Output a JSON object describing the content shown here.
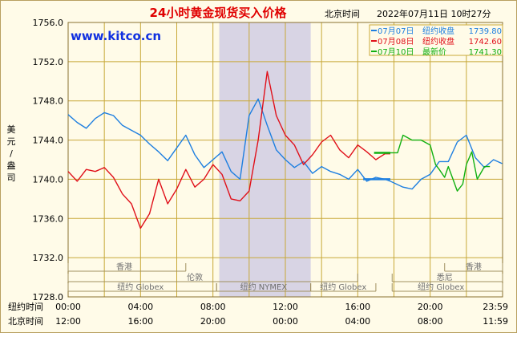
{
  "header": {
    "title": "24小时黄金现货买入价格",
    "timezone_label": "北京时间",
    "timestamp": "2022年07月11日 10时27分",
    "watermark": "www.kitco.cn"
  },
  "legend": [
    {
      "date_label": "07月07日",
      "desc": "纽约收盘",
      "value": "1739.80",
      "color": "#1e7fe0"
    },
    {
      "date_label": "07月08日",
      "desc": "纽约收盘",
      "value": "1742.60",
      "color": "#e0101a"
    },
    {
      "date_label": "07月10日",
      "desc": "最新价",
      "value": "1741.30",
      "color": "#10b010"
    }
  ],
  "axes": {
    "ylabel": "美元/盎司",
    "y_ticks": [
      "1756.0",
      "1752.0",
      "1748.0",
      "1744.0",
      "1740.0",
      "1736.0",
      "1732.0",
      "1728.0"
    ],
    "row1_label": "纽约时间",
    "row1_ticks": [
      "00:00",
      "04:00",
      "08:00",
      "12:00",
      "16:00",
      "20:00",
      "23:59"
    ],
    "row2_label": "北京时间",
    "row2_ticks": [
      "12:00",
      "16:00",
      "20:00",
      "00:00",
      "04:00",
      "08:00",
      "11:59"
    ]
  },
  "sessions": [
    "香港",
    "伦敦",
    "纽约 Globex",
    "纽约 NYMEX",
    "纽约 Globex",
    "香港",
    "悉尼",
    "纽约 Globex"
  ],
  "colors": {
    "grid": "#c8a838",
    "panel": "#fffbe8",
    "shade": "#d8d4e4",
    "accent_title": "#e00000",
    "watermark": "#1030e0"
  },
  "chart_data": {
    "type": "line",
    "title": "24小时黄金现货买入价格",
    "xlabel": "纽约时间",
    "ylabel": "美元/盎司",
    "ylim": [
      1728.0,
      1756.0
    ],
    "xlim_hours": [
      0,
      24
    ],
    "grid": true,
    "highlight_hours": [
      8.35,
      13.4
    ],
    "series": [
      {
        "name": "07月07日 纽约收盘",
        "color": "#1e7fe0",
        "x": [
          0,
          0.5,
          1,
          1.5,
          2,
          2.5,
          3,
          3.5,
          4,
          4.5,
          5,
          5.5,
          6,
          6.5,
          7,
          7.5,
          8,
          8.5,
          9,
          9.5,
          10,
          10.5,
          11,
          11.5,
          12,
          12.5,
          13,
          13.5,
          14,
          14.5,
          15,
          15.5,
          16,
          16.5,
          17,
          17.5,
          17.8,
          18.5,
          19,
          19.5,
          20,
          20.5,
          21,
          21.5,
          22,
          22.5,
          23,
          23.5,
          23.98
        ],
        "y": [
          1746.6,
          1745.8,
          1745.2,
          1746.2,
          1746.8,
          1746.5,
          1745.5,
          1745.0,
          1744.5,
          1743.6,
          1742.8,
          1741.9,
          1743.2,
          1744.5,
          1742.5,
          1741.2,
          1742.0,
          1742.8,
          1740.8,
          1740.0,
          1746.5,
          1748.2,
          1745.5,
          1743.0,
          1742.0,
          1741.2,
          1741.8,
          1740.6,
          1741.3,
          1740.8,
          1740.5,
          1740.0,
          1741.0,
          1739.8,
          1740.2,
          1740.0,
          1739.8,
          1739.2,
          1739.0,
          1740.0,
          1740.5,
          1741.8,
          1741.8,
          1743.8,
          1744.5,
          1742.2,
          1741.2,
          1742.0,
          1741.6
        ]
      },
      {
        "name": "07月08日 纽约收盘",
        "color": "#e0101a",
        "x": [
          0,
          0.5,
          1,
          1.5,
          2,
          2.5,
          3,
          3.5,
          4,
          4.5,
          5,
          5.5,
          6,
          6.5,
          7,
          7.5,
          8,
          8.5,
          9,
          9.5,
          10,
          10.5,
          11,
          11.5,
          12,
          12.5,
          13,
          13.5,
          14,
          14.5,
          15,
          15.5,
          16,
          16.5,
          17,
          17.5,
          17.8
        ],
        "y": [
          1740.8,
          1739.8,
          1741.0,
          1740.8,
          1741.2,
          1740.2,
          1738.5,
          1737.5,
          1735.0,
          1736.5,
          1740.0,
          1737.5,
          1739.0,
          1741.0,
          1739.2,
          1740.0,
          1741.5,
          1740.5,
          1738.0,
          1737.8,
          1738.8,
          1744.0,
          1751.0,
          1746.5,
          1744.5,
          1743.5,
          1741.5,
          1742.5,
          1743.8,
          1744.5,
          1743.0,
          1742.2,
          1743.5,
          1742.8,
          1742.0,
          1742.6,
          1742.6
        ]
      },
      {
        "name": "07月10日 最新价",
        "color": "#10b010",
        "x": [
          17.8,
          18.2,
          18.5,
          19,
          19.5,
          20,
          20.3,
          20.5,
          20.8,
          21,
          21.2,
          21.5,
          21.8,
          22,
          22.3,
          22.6,
          23,
          23.3
        ],
        "y": [
          1742.7,
          1742.7,
          1744.5,
          1744.0,
          1744.0,
          1743.5,
          1741.5,
          1741.0,
          1740.2,
          1741.3,
          1740.3,
          1738.8,
          1739.5,
          1741.5,
          1742.8,
          1740.0,
          1741.3,
          1741.3
        ]
      }
    ]
  }
}
